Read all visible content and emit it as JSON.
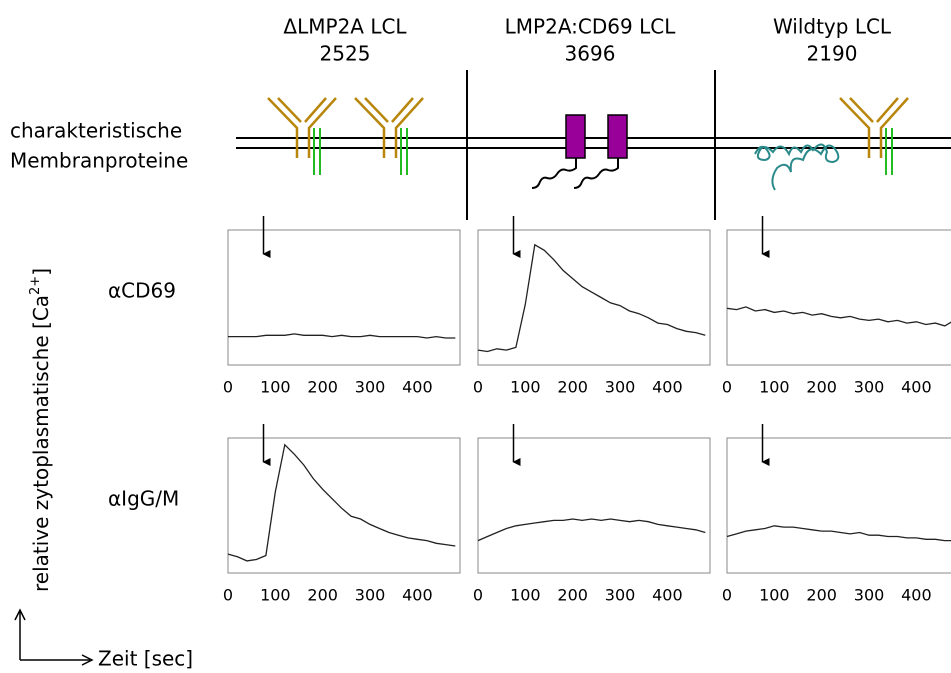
{
  "columns": [
    {
      "title": "ΔLMP2A LCL",
      "id": "2525"
    },
    {
      "title": "LMP2A:CD69 LCL",
      "id": "3696"
    },
    {
      "title": "Wildtyp LCL",
      "id": "2190"
    }
  ],
  "membrane_label": [
    "charakteristische",
    "Membranproteine"
  ],
  "rows": [
    "αCD69",
    "αIgG/M"
  ],
  "y_axis_label": {
    "text": "relative zytoplasmatische [Ca",
    "superscript": "2+",
    "closing": "]"
  },
  "x_axis_label": "Zeit [sec]",
  "chart_data": [
    {
      "type": "line",
      "color": "#222222",
      "stimulus_x": 75,
      "xlim": [
        0,
        490
      ],
      "xticks": [
        0,
        100,
        200,
        300,
        400
      ],
      "ylim": [
        0,
        100
      ],
      "x": [
        0,
        20,
        40,
        60,
        80,
        100,
        120,
        140,
        160,
        180,
        200,
        220,
        240,
        260,
        280,
        300,
        320,
        340,
        360,
        380,
        400,
        420,
        440,
        460,
        480
      ],
      "values": [
        21,
        21,
        21,
        21,
        22,
        22,
        22,
        23,
        22,
        22,
        22,
        21,
        22,
        21,
        21,
        22,
        21,
        21,
        21,
        21,
        21,
        20,
        21,
        20,
        20
      ]
    },
    {
      "type": "line",
      "color": "#222222",
      "stimulus_x": 75,
      "xlim": [
        0,
        490
      ],
      "xticks": [
        0,
        100,
        200,
        300,
        400
      ],
      "ylim": [
        0,
        100
      ],
      "x": [
        0,
        20,
        40,
        60,
        80,
        100,
        120,
        140,
        160,
        180,
        200,
        220,
        240,
        260,
        280,
        300,
        320,
        340,
        360,
        380,
        400,
        420,
        440,
        460,
        480
      ],
      "values": [
        11,
        10,
        12,
        11,
        13,
        45,
        89,
        85,
        78,
        70,
        64,
        58,
        54,
        50,
        46,
        44,
        40,
        38,
        35,
        31,
        30,
        27,
        25,
        24,
        22
      ]
    },
    {
      "type": "line",
      "color": "#222222",
      "stimulus_x": 75,
      "xlim": [
        0,
        490
      ],
      "xticks": [
        0,
        100,
        200,
        300,
        400
      ],
      "ylim": [
        0,
        100
      ],
      "x": [
        0,
        20,
        40,
        60,
        80,
        100,
        120,
        140,
        160,
        180,
        200,
        220,
        240,
        260,
        280,
        300,
        320,
        340,
        360,
        380,
        400,
        420,
        440,
        460,
        480
      ],
      "values": [
        42,
        41,
        43,
        40,
        41,
        39,
        40,
        38,
        39,
        37,
        38,
        36,
        35,
        36,
        34,
        33,
        34,
        32,
        33,
        31,
        32,
        30,
        31,
        29,
        33
      ]
    },
    {
      "type": "line",
      "color": "#222222",
      "stimulus_x": 75,
      "xlim": [
        0,
        490
      ],
      "xticks": [
        0,
        100,
        200,
        300,
        400
      ],
      "ylim": [
        0,
        100
      ],
      "x": [
        0,
        20,
        40,
        60,
        80,
        100,
        120,
        140,
        160,
        180,
        200,
        220,
        240,
        260,
        280,
        300,
        320,
        340,
        360,
        380,
        400,
        420,
        440,
        460,
        480
      ],
      "values": [
        14,
        12,
        9,
        10,
        13,
        60,
        95,
        88,
        80,
        70,
        62,
        55,
        48,
        42,
        40,
        36,
        33,
        30,
        28,
        26,
        25,
        24,
        22,
        21,
        20
      ]
    },
    {
      "type": "line",
      "color": "#222222",
      "stimulus_x": 75,
      "xlim": [
        0,
        490
      ],
      "xticks": [
        0,
        100,
        200,
        300,
        400
      ],
      "ylim": [
        0,
        100
      ],
      "x": [
        0,
        20,
        40,
        60,
        80,
        100,
        120,
        140,
        160,
        180,
        200,
        220,
        240,
        260,
        280,
        300,
        320,
        340,
        360,
        380,
        400,
        420,
        440,
        460,
        480
      ],
      "values": [
        24,
        27,
        30,
        33,
        35,
        36,
        37,
        38,
        39,
        39,
        40,
        39,
        40,
        39,
        40,
        39,
        38,
        39,
        38,
        36,
        35,
        34,
        33,
        32,
        30
      ]
    },
    {
      "type": "line",
      "color": "#222222",
      "stimulus_x": 75,
      "xlim": [
        0,
        490
      ],
      "xticks": [
        0,
        100,
        200,
        300,
        400
      ],
      "ylim": [
        0,
        100
      ],
      "x": [
        0,
        20,
        40,
        60,
        80,
        100,
        120,
        140,
        160,
        180,
        200,
        220,
        240,
        260,
        280,
        300,
        320,
        340,
        360,
        380,
        400,
        420,
        440,
        460,
        480
      ],
      "values": [
        27,
        29,
        31,
        32,
        33,
        35,
        34,
        34,
        33,
        32,
        31,
        31,
        30,
        29,
        30,
        28,
        28,
        27,
        27,
        26,
        26,
        25,
        25,
        24,
        24
      ]
    }
  ]
}
